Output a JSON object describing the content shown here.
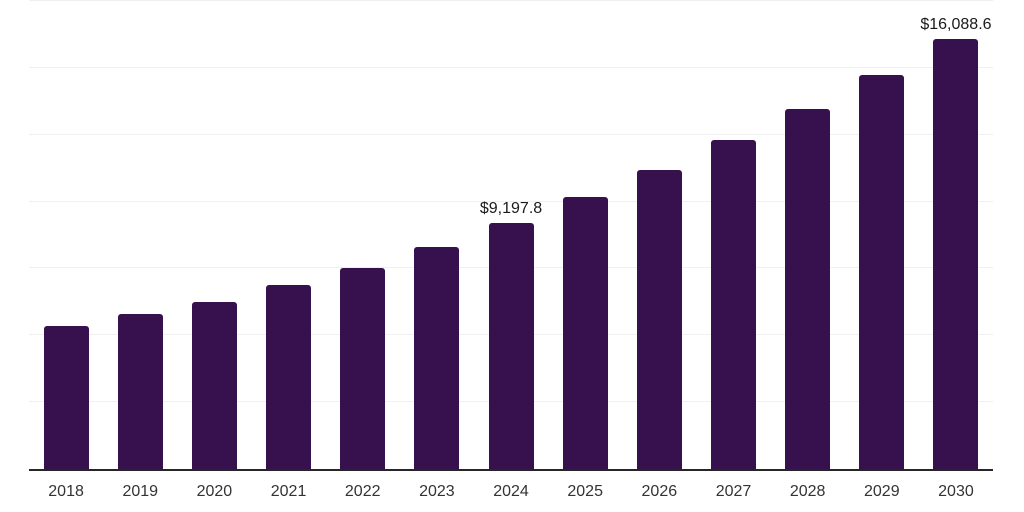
{
  "chart_data": {
    "type": "bar",
    "title": "",
    "xlabel": "",
    "ylabel": "",
    "categories": [
      "2018",
      "2019",
      "2020",
      "2021",
      "2022",
      "2023",
      "2024",
      "2025",
      "2026",
      "2027",
      "2028",
      "2029",
      "2030"
    ],
    "values": [
      5350,
      5800,
      6250,
      6880,
      7520,
      8300,
      9197.8,
      10170,
      11180,
      12300,
      13460,
      14730,
      16088.6
    ],
    "annotations": [
      {
        "category": "2024",
        "text": "$9,197.8"
      },
      {
        "category": "2030",
        "text": "$16,088.6"
      }
    ],
    "ylim": [
      0,
      17500
    ],
    "gridline_step": 2500,
    "grid": true,
    "legend": "none",
    "bar_color": "#37114D",
    "axis_line_color": "#262626",
    "gridline_color": "#f0f0f0",
    "tick_label_color": "#333333",
    "annotation_color": "#1a1a1a",
    "background_color": "#ffffff"
  }
}
